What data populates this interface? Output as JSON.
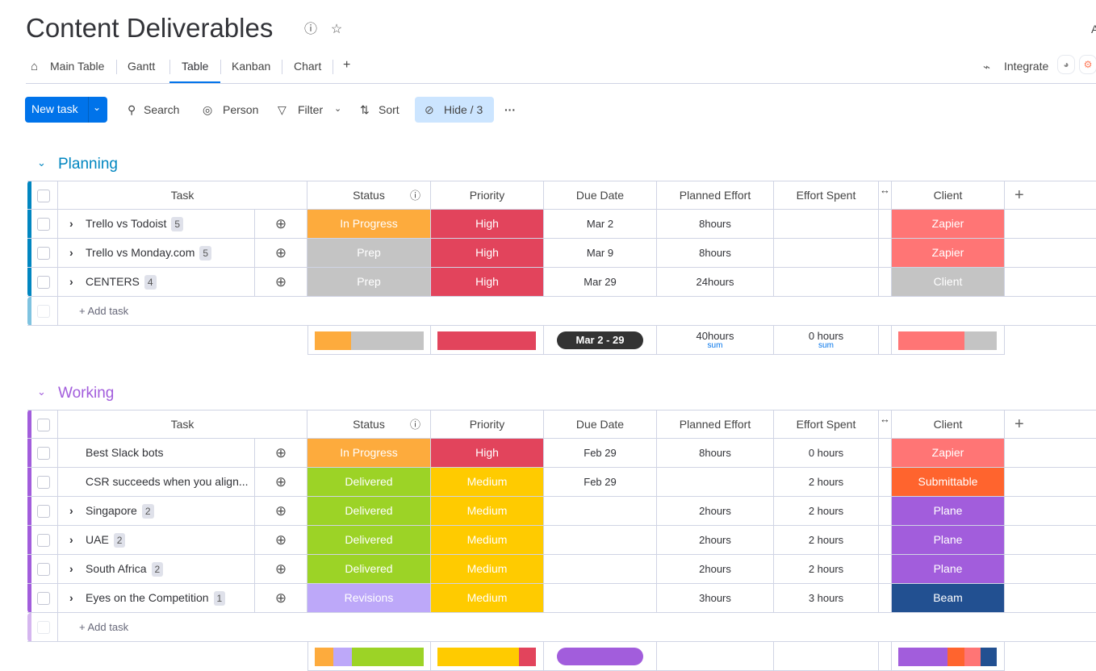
{
  "header": {
    "title": "Content Deliverables",
    "info_icon": "info-icon",
    "star_icon": "star-icon",
    "corner_text": "A"
  },
  "tabs": [
    {
      "label": "Main Table"
    },
    {
      "label": "Gantt"
    },
    {
      "label": "Table"
    },
    {
      "label": "Kanban"
    },
    {
      "label": "Chart"
    },
    {
      "label": "+"
    }
  ],
  "integrate": {
    "label": "Integrate"
  },
  "toolbar": {
    "new_task": "New task",
    "search": "Search",
    "person": "Person",
    "filter": "Filter",
    "sort": "Sort",
    "hide": "Hide / 3",
    "more": "···"
  },
  "columns": [
    "Task",
    "Status",
    "Priority",
    "Due Date",
    "Planned Effort",
    "Effort Spent",
    "Client"
  ],
  "colors": {
    "In Progress": "#fdab3d",
    "Prep": "#c4c4c4",
    "High": "#e2445c",
    "Delivered": "#9cd326",
    "Medium": "#ffcb00",
    "Revisions": "#bda8f9",
    "Zapier": "#ff7575",
    "Client": "#c4c4c4",
    "Submittable": "#ff642e",
    "Plane": "#a25ddc",
    "Beam": "#225091"
  },
  "groups": [
    {
      "title": "Planning",
      "color": "#0086c0",
      "stripe_light": "#7fc3e0",
      "add_task": "+ Add task",
      "rows": [
        {
          "task": "Trello vs Todoist",
          "count": "5",
          "expand": true,
          "status": "In Progress",
          "priority": "High",
          "due": "Mar 2",
          "planned": "8hours",
          "spent": "",
          "client": "Zapier"
        },
        {
          "task": "Trello vs Monday.com",
          "count": "5",
          "expand": true,
          "status": "Prep",
          "priority": "High",
          "due": "Mar 9",
          "planned": "8hours",
          "spent": "",
          "client": "Zapier"
        },
        {
          "task": "CENTERS",
          "count": "4",
          "expand": true,
          "status": "Prep",
          "priority": "High",
          "due": "Mar 29",
          "planned": "24hours",
          "spent": "",
          "client": "Client"
        }
      ],
      "summary": {
        "date_range": "Mar 2 - 29",
        "planned": "40hours",
        "planned_sub": "sum",
        "spent": "0 hours",
        "spent_sub": "sum",
        "status_dist": [
          {
            "label": "In Progress",
            "pct": 33
          },
          {
            "label": "Prep",
            "pct": 67
          }
        ],
        "priority_dist": [
          {
            "label": "High",
            "pct": 100
          }
        ],
        "client_dist": [
          {
            "label": "Zapier",
            "pct": 67
          },
          {
            "label": "Client",
            "pct": 33
          }
        ]
      }
    },
    {
      "title": "Working",
      "color": "#a25ddc",
      "stripe_light": "#d5b6ef",
      "add_task": "+ Add task",
      "rows": [
        {
          "task": "Best Slack bots",
          "count": "",
          "expand": false,
          "status": "In Progress",
          "priority": "High",
          "due": "Feb 29",
          "planned": "8hours",
          "spent": "0 hours",
          "client": "Zapier"
        },
        {
          "task": "CSR succeeds when you align...",
          "count": "",
          "expand": false,
          "status": "Delivered",
          "priority": "Medium",
          "due": "Feb 29",
          "planned": "",
          "spent": "2 hours",
          "client": "Submittable"
        },
        {
          "task": "Singapore",
          "count": "2",
          "expand": true,
          "status": "Delivered",
          "priority": "Medium",
          "due": "",
          "planned": "2hours",
          "spent": "2 hours",
          "client": "Plane"
        },
        {
          "task": "UAE",
          "count": "2",
          "expand": true,
          "status": "Delivered",
          "priority": "Medium",
          "due": "",
          "planned": "2hours",
          "spent": "2 hours",
          "client": "Plane"
        },
        {
          "task": "South Africa",
          "count": "2",
          "expand": true,
          "status": "Delivered",
          "priority": "Medium",
          "due": "",
          "planned": "2hours",
          "spent": "2 hours",
          "client": "Plane"
        },
        {
          "task": "Eyes on the Competition",
          "count": "1",
          "expand": true,
          "status": "Revisions",
          "priority": "Medium",
          "due": "",
          "planned": "3hours",
          "spent": "3 hours",
          "client": "Beam"
        }
      ],
      "summary": {
        "status_dist": [
          {
            "label": "In Progress",
            "pct": 17
          },
          {
            "label": "Revisions",
            "pct": 17
          },
          {
            "label": "Delivered",
            "pct": 66
          }
        ],
        "priority_dist": [
          {
            "label": "Medium",
            "pct": 83
          },
          {
            "label": "High",
            "pct": 17
          }
        ],
        "client_dist": [
          {
            "label": "Plane",
            "pct": 50
          },
          {
            "label": "Submittable",
            "pct": 17
          },
          {
            "label": "Zapier",
            "pct": 17
          },
          {
            "label": "Beam",
            "pct": 16
          }
        ]
      }
    }
  ]
}
